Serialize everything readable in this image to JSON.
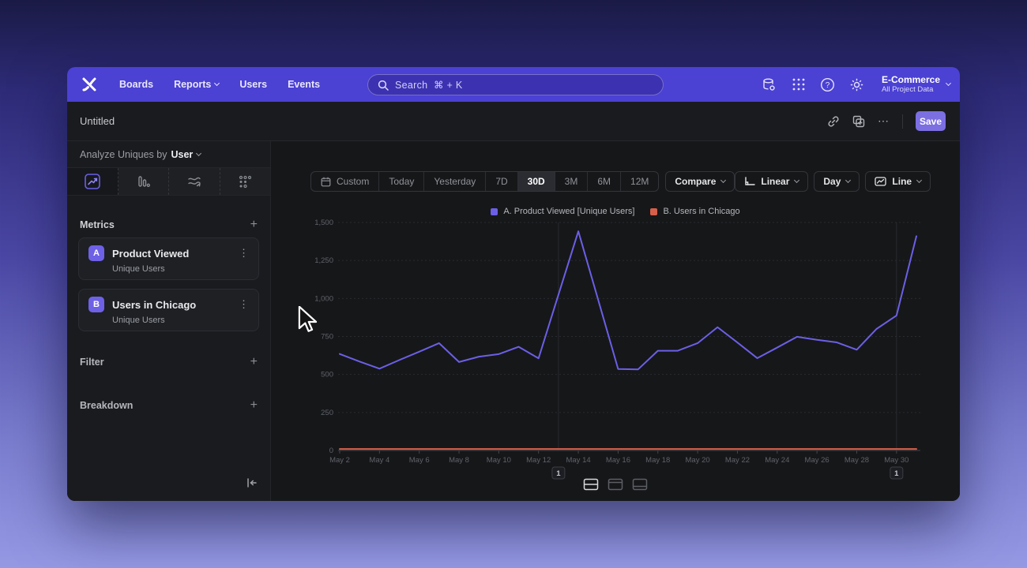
{
  "nav": {
    "items": [
      {
        "label": "Boards"
      },
      {
        "label": "Reports"
      },
      {
        "label": "Users"
      },
      {
        "label": "Events"
      }
    ],
    "search_placeholder": "Search  ⌘ + K",
    "project_name": "E-Commerce",
    "project_subtitle": "All Project Data"
  },
  "toolbar": {
    "title": "Untitled",
    "save_label": "Save",
    "more_label": "⋯"
  },
  "sidebar": {
    "analyze_prefix": "Analyze Uniques by",
    "analyze_value": "User",
    "metrics_header": "Metrics",
    "metric_cards": [
      {
        "badge": "A",
        "name": "Product Viewed",
        "subtitle": "Unique Users"
      },
      {
        "badge": "B",
        "name": "Users in Chicago",
        "subtitle": "Unique Users"
      }
    ],
    "filter_header": "Filter",
    "breakdown_header": "Breakdown"
  },
  "controls": {
    "ranges": [
      {
        "label": "Custom"
      },
      {
        "label": "Today"
      },
      {
        "label": "Yesterday"
      },
      {
        "label": "7D"
      },
      {
        "label": "30D"
      },
      {
        "label": "3M"
      },
      {
        "label": "6M"
      },
      {
        "label": "12M"
      }
    ],
    "selected_range": "30D",
    "compare_label": "Compare",
    "scale_label": "Linear",
    "granularity_label": "Day",
    "chart_type_label": "Line"
  },
  "chart_data": {
    "type": "line",
    "categories": [
      "May 2",
      "May 3",
      "May 4",
      "May 5",
      "May 6",
      "May 7",
      "May 8",
      "May 9",
      "May 10",
      "May 11",
      "May 12",
      "May 13",
      "May 14",
      "May 15",
      "May 16",
      "May 17",
      "May 18",
      "May 19",
      "May 20",
      "May 21",
      "May 22",
      "May 23",
      "May 24",
      "May 25",
      "May 26",
      "May 27",
      "May 28",
      "May 29",
      "May 30",
      "May 31"
    ],
    "series": [
      {
        "name": "A. Product Viewed [Unique Users]",
        "color": "#6b5fe6",
        "values": [
          635,
          585,
          538,
          595,
          650,
          706,
          582,
          617,
          634,
          682,
          606,
          1025,
          1442,
          990,
          536,
          533,
          656,
          656,
          706,
          811,
          710,
          607,
          677,
          748,
          728,
          711,
          663,
          800,
          888,
          1410
        ]
      },
      {
        "name": "B. Users in Chicago",
        "color": "#d65f4a",
        "values": [
          10,
          10,
          10,
          10,
          10,
          10,
          10,
          10,
          10,
          10,
          10,
          10,
          10,
          10,
          10,
          10,
          10,
          10,
          10,
          10,
          10,
          10,
          10,
          10,
          10,
          10,
          10,
          10,
          10,
          10
        ]
      }
    ],
    "ylim": [
      0,
      1500
    ],
    "yticks": [
      {
        "value": 0,
        "label": "0"
      },
      {
        "value": 250,
        "label": "250"
      },
      {
        "value": 500,
        "label": "500"
      },
      {
        "value": 750,
        "label": "750"
      },
      {
        "value": 1000,
        "label": "1,000"
      },
      {
        "value": 1250,
        "label": "1,250"
      },
      {
        "value": 1500,
        "label": "1,500"
      }
    ],
    "x_tick_every": 2,
    "grid": "horizontal-dotted",
    "legend_position": "top",
    "annotations": [
      {
        "index": 11,
        "label": "1"
      },
      {
        "index": 28,
        "label": "1"
      }
    ]
  },
  "colors": {
    "nav": "#4b41d3",
    "save_button": "#7b6fe2",
    "series_a": "#6b5fe6",
    "series_b": "#d65f4a",
    "metric_badge": "#6e61e6",
    "selected_tab": "#6a5fe8"
  }
}
